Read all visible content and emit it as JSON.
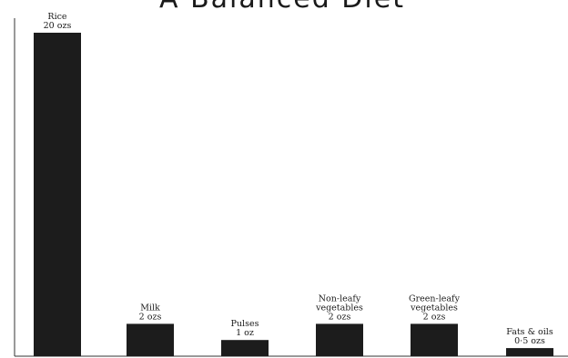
{
  "chart_data": {
    "type": "bar",
    "title": "A Balanced Diet",
    "categories": [
      "Rice",
      "Milk",
      "Pulses",
      "Non-leafy vegetables",
      "Green-leafy vegetables",
      "Fats & oils"
    ],
    "label_lines": [
      [
        "Rice"
      ],
      [
        "Milk"
      ],
      [
        "Pulses"
      ],
      [
        "Non-leafy",
        "vegetables"
      ],
      [
        "Green-leafy",
        "vegetables"
      ],
      [
        "Fats & oils"
      ]
    ],
    "value_labels": [
      "20 ozs",
      "2 ozs",
      "1 oz",
      "2 ozs",
      "2 ozs",
      "0·5 ozs"
    ],
    "values": [
      20,
      2,
      1,
      2,
      2,
      0.5
    ],
    "unit": "ozs",
    "ylim": [
      0,
      20
    ],
    "grid": false,
    "bar_color": "#1c1c1c",
    "axis_color": "#333333"
  }
}
